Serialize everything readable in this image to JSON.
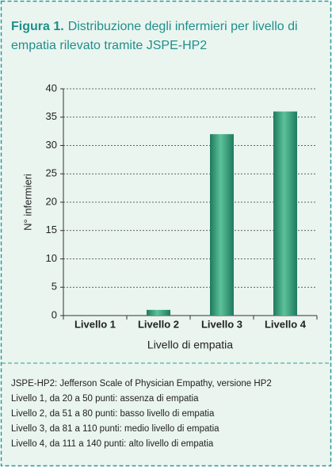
{
  "chart_data": {
    "type": "bar",
    "figure_label": "Figura 1.",
    "title": "Distribuzione degli infermieri per livello di empatia rilevato tramite JSPE-HP2",
    "categories": [
      "Livello 1",
      "Livello 2",
      "Livello 3",
      "Livello 4"
    ],
    "values": [
      0,
      1,
      32,
      36
    ],
    "color": "#2e9e7c",
    "ylim": [
      0,
      40
    ],
    "yticks": [
      0,
      5,
      10,
      15,
      20,
      25,
      30,
      35,
      40
    ],
    "grid": true,
    "y_label": "N° infermieri",
    "x_label": "Livello di empatia",
    "notes": [
      "JSPE-HP2: Jefferson Scale of Physician Empathy, versione HP2",
      "Livello 1, da 20 a 50 punti: assenza di empatia",
      "Livello 2, da 51 a 80 punti: basso livello di empatia",
      "Livello 3, da 81 a 110 punti: medio livello di empatia",
      "Livello 4, da 111 a 140 punti: alto livello di empatia"
    ]
  }
}
